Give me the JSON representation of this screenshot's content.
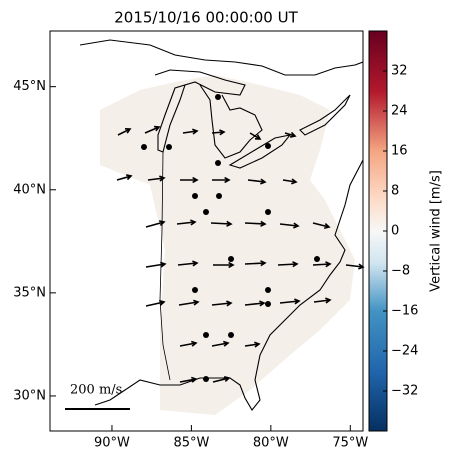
{
  "map": {
    "title": "2015/10/16 00:00:00 UT",
    "lonlim": [
      -93.9,
      -74.2
    ],
    "latlim": [
      28.3,
      47.7
    ],
    "lon_ticks": [
      {
        "value": -90,
        "label": "90°W"
      },
      {
        "value": -85,
        "label": "85°W"
      },
      {
        "value": -80,
        "label": "80°W"
      },
      {
        "value": -75,
        "label": "75°W"
      }
    ],
    "lat_ticks": [
      {
        "value": 30,
        "label": "30°N"
      },
      {
        "value": 35,
        "label": "35°N"
      },
      {
        "value": 40,
        "label": "40°N"
      },
      {
        "value": 45,
        "label": "45°N"
      }
    ],
    "scale_label": "200 m/s",
    "colorbar": {
      "label": "Vertical wind [m/s]",
      "lim": [
        -40,
        40
      ],
      "ticks": [
        {
          "value": -32,
          "label": "−32"
        },
        {
          "value": -24,
          "label": "−24"
        },
        {
          "value": -16,
          "label": "−16"
        },
        {
          "value": -8,
          "label": "−8"
        },
        0,
        8,
        16,
        24,
        32
      ]
    }
  }
}
